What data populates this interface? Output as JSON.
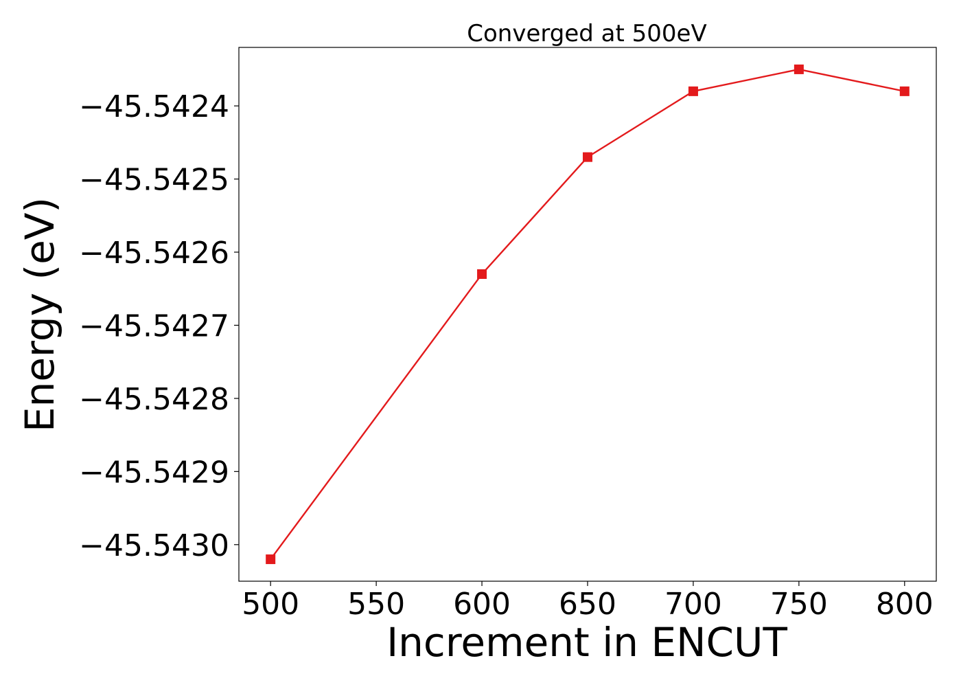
{
  "chart_data": {
    "type": "line",
    "title": "Converged at 500eV",
    "xlabel": "Increment in ENCUT",
    "ylabel": "Energy (eV)",
    "x": [
      500,
      600,
      650,
      700,
      750,
      800
    ],
    "series": [
      {
        "values": [
          -45.54302,
          -45.54263,
          -45.54247,
          -45.54238,
          -45.54235,
          -45.54238
        ],
        "color": "#e31a1c",
        "marker": "square"
      }
    ],
    "xticks": [
      500,
      550,
      600,
      650,
      700,
      750,
      800
    ],
    "xtick_labels": [
      "500",
      "550",
      "600",
      "650",
      "700",
      "750",
      "800"
    ],
    "yticks": [
      -45.5424,
      -45.5425,
      -45.5426,
      -45.5427,
      -45.5428,
      -45.5429,
      -45.543
    ],
    "ytick_labels": [
      "−45.5424",
      "−45.5425",
      "−45.5426",
      "−45.5427",
      "−45.5428",
      "−45.5429",
      "−45.5430"
    ],
    "xlim": [
      485,
      815
    ],
    "ylim": [
      -45.54305,
      -45.54232
    ],
    "grid": false
  }
}
